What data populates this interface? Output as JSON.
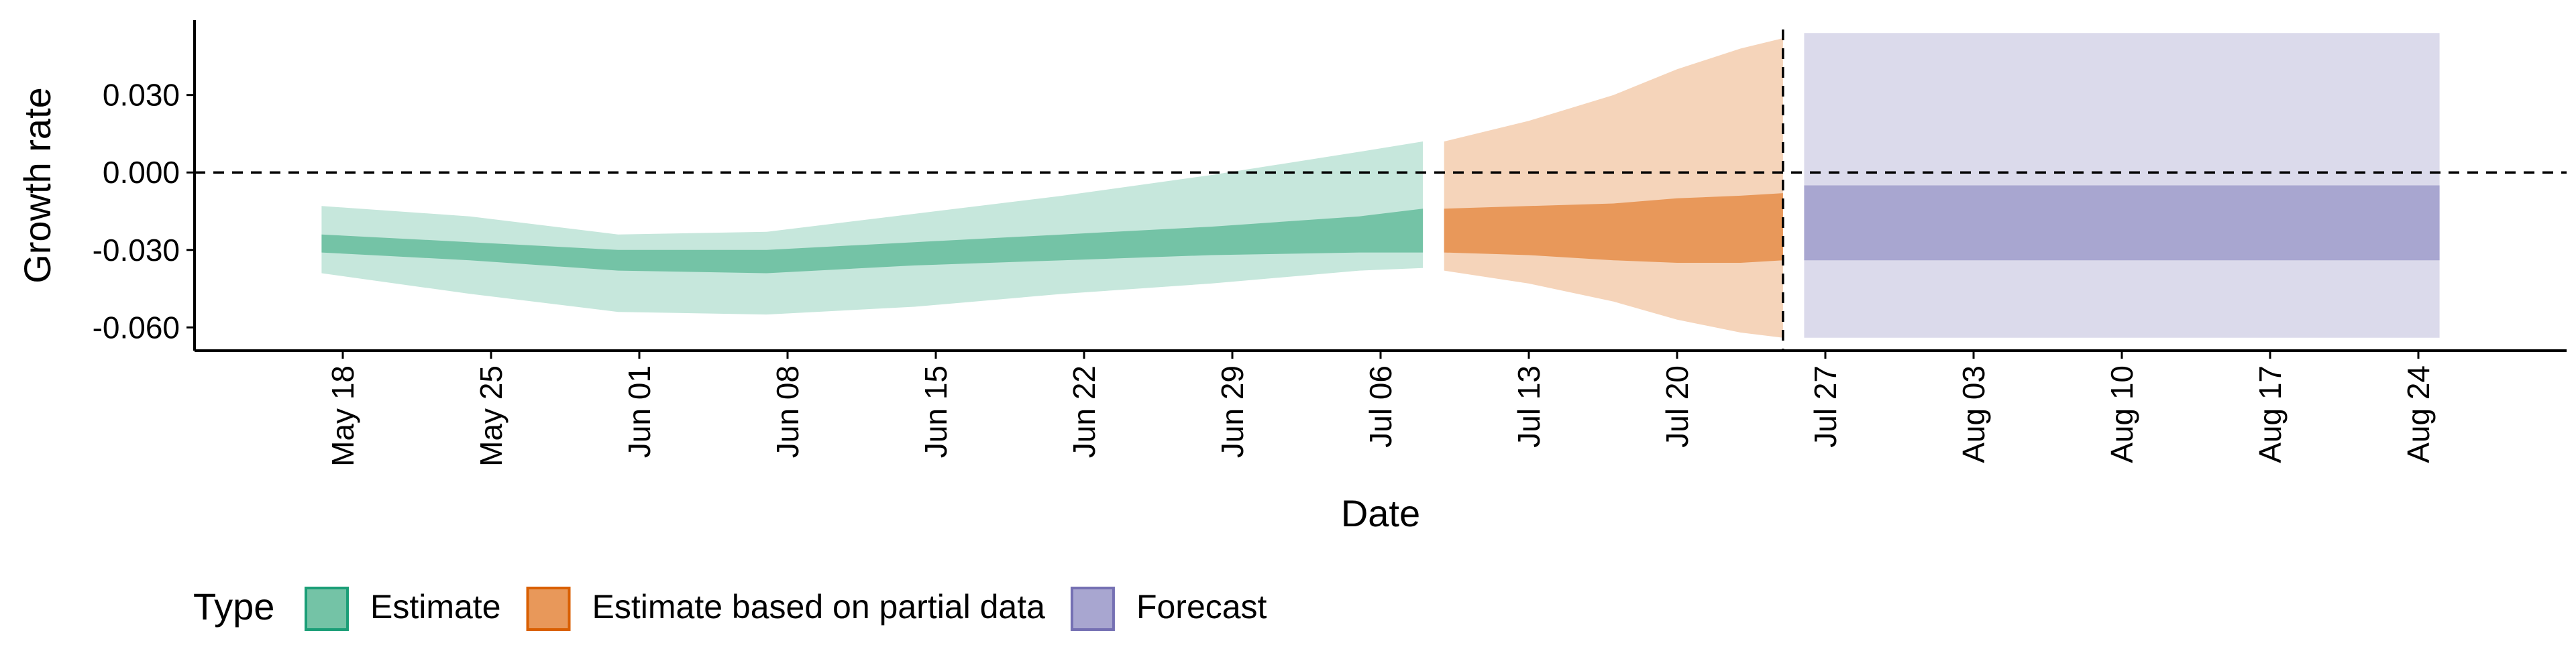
{
  "chart_data": {
    "type": "area",
    "xlabel": "Date",
    "ylabel": "Growth rate",
    "x_ticks": [
      "May 18",
      "May 25",
      "Jun 01",
      "Jun 08",
      "Jun 15",
      "Jun 22",
      "Jun 29",
      "Jul 06",
      "Jul 13",
      "Jul 20",
      "Jul 27",
      "Aug 03",
      "Aug 10",
      "Aug 17",
      "Aug 24"
    ],
    "y_ticks": [
      0.03,
      0.0,
      -0.03,
      -0.06
    ],
    "y_tick_labels": [
      "0.030",
      "0.000",
      "-0.030",
      "-0.060"
    ],
    "xlim": [
      "2020-05-11",
      "2020-08-31"
    ],
    "ylim": [
      -0.069,
      0.059
    ],
    "hline_y": 0.0,
    "vline_x": "2020-07-25",
    "legend": {
      "title": "Type",
      "position": "bottom-left",
      "entries": [
        {
          "label": "Estimate",
          "fill": "#74c3a6",
          "border": "#1b9e77"
        },
        {
          "label": "Estimate based on partial data",
          "fill": "#e8985a",
          "border": "#d95f02"
        },
        {
          "label": "Forecast",
          "fill": "#a8a6d0",
          "border": "#7570b3"
        }
      ]
    },
    "series": [
      {
        "name": "Estimate",
        "color_inner": "#74c3a6",
        "color_outer": "#c6e7dc",
        "x": [
          "2020-05-17",
          "2020-05-24",
          "2020-05-31",
          "2020-06-07",
          "2020-06-14",
          "2020-06-21",
          "2020-06-28",
          "2020-07-05",
          "2020-07-08"
        ],
        "outer_lo": [
          -0.039,
          -0.047,
          -0.054,
          -0.055,
          -0.052,
          -0.047,
          -0.043,
          -0.038,
          -0.037
        ],
        "outer_hi": [
          -0.013,
          -0.017,
          -0.024,
          -0.023,
          -0.016,
          -0.009,
          -0.001,
          0.008,
          0.012
        ],
        "inner_lo": [
          -0.031,
          -0.034,
          -0.038,
          -0.039,
          -0.036,
          -0.034,
          -0.032,
          -0.031,
          -0.031
        ],
        "inner_hi": [
          -0.024,
          -0.027,
          -0.03,
          -0.03,
          -0.027,
          -0.024,
          -0.021,
          -0.017,
          -0.014
        ]
      },
      {
        "name": "Estimate based on partial data",
        "color_inner": "#e8985a",
        "color_outer": "#f5d4ba",
        "x": [
          "2020-07-09",
          "2020-07-13",
          "2020-07-17",
          "2020-07-20",
          "2020-07-23",
          "2020-07-25"
        ],
        "outer_lo": [
          -0.038,
          -0.043,
          -0.05,
          -0.057,
          -0.062,
          -0.064
        ],
        "outer_hi": [
          0.012,
          0.02,
          0.03,
          0.04,
          0.048,
          0.052
        ],
        "inner_lo": [
          -0.031,
          -0.032,
          -0.034,
          -0.035,
          -0.035,
          -0.034
        ],
        "inner_hi": [
          -0.014,
          -0.013,
          -0.012,
          -0.01,
          -0.009,
          -0.008
        ]
      },
      {
        "name": "Forecast",
        "color_inner": "#a8a6d0",
        "color_outer": "#dbdaeb",
        "x": [
          "2020-07-26",
          "2020-08-25"
        ],
        "outer_lo": [
          -0.064,
          -0.064
        ],
        "outer_hi": [
          0.054,
          0.054
        ],
        "inner_lo": [
          -0.034,
          -0.034
        ],
        "inner_hi": [
          -0.005,
          -0.005
        ]
      }
    ]
  }
}
